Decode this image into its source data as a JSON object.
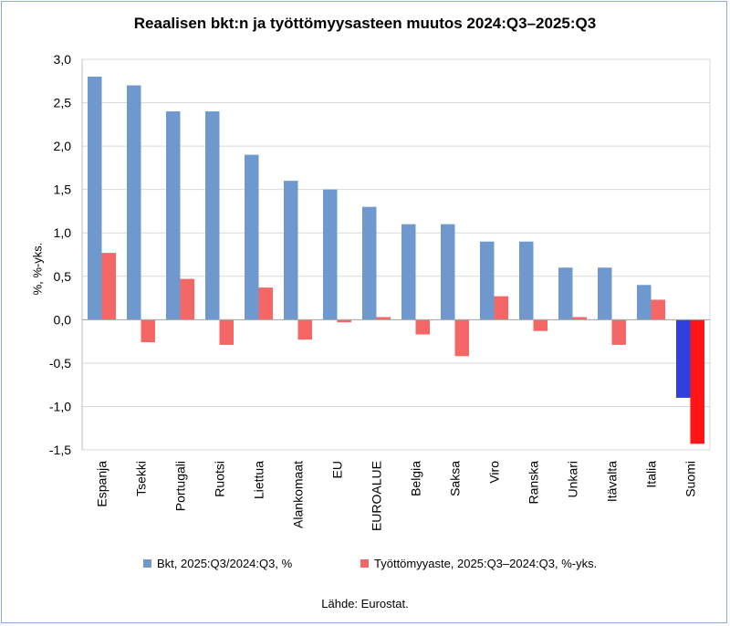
{
  "chart_data": {
    "type": "bar",
    "title": "Reaalisen bkt:n ja työttömyysasteen muutos 2024:Q3–2025:Q3",
    "xlabel": "",
    "ylabel": "%, %-yks.",
    "ylim": [
      -1.5,
      3.0
    ],
    "ytick_step": 0.5,
    "ytick_labels": [
      "3,0",
      "2,5",
      "2,0",
      "1,5",
      "1,0",
      "0,5",
      "0,0",
      "-0,5",
      "-1,0",
      "-1,5"
    ],
    "grid": true,
    "legend_position": "bottom",
    "categories": [
      "Espanja",
      "Tsekki",
      "Portugali",
      "Ruotsi",
      "Liettua",
      "Alankomaat",
      "EU",
      "EUROALUE",
      "Belgia",
      "Saksa",
      "Viro",
      "Ranska",
      "Unkari",
      "Itävalta",
      "Italia",
      "Suomi"
    ],
    "series": [
      {
        "name": "Bkt, 2025:Q3/2024:Q3, %",
        "color": "#6f98cf",
        "highlight_color": "#2f3fe0",
        "values": [
          2.8,
          2.7,
          2.4,
          2.4,
          1.9,
          1.6,
          1.5,
          1.3,
          1.1,
          1.1,
          0.9,
          0.9,
          0.6,
          0.6,
          0.4,
          -0.9
        ]
      },
      {
        "name": "Työttömyyaste, 2025:Q3–2024:Q3, %-yks.",
        "color": "#f56767",
        "highlight_color": "#ff1515",
        "values": [
          0.77,
          -0.26,
          0.47,
          -0.29,
          0.37,
          -0.23,
          -0.03,
          0.03,
          -0.17,
          -0.42,
          0.27,
          -0.13,
          0.03,
          -0.29,
          0.23,
          -1.43
        ]
      }
    ],
    "highlight_category": "Suomi",
    "source": "Lähde: Eurostat."
  }
}
